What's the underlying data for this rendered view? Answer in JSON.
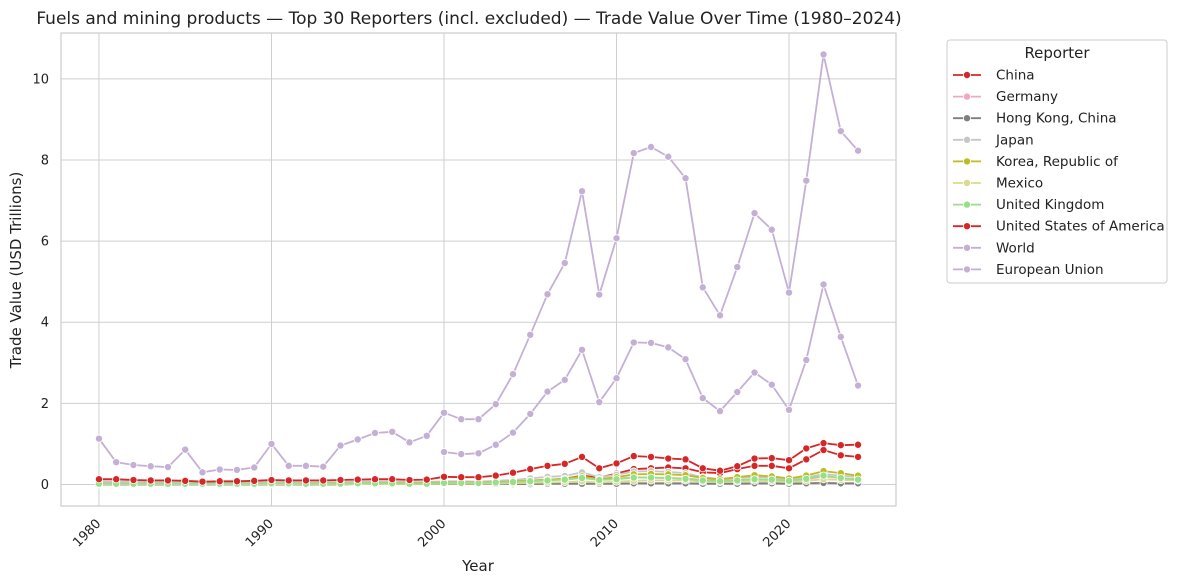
{
  "chart_data": {
    "type": "line",
    "title": "Fuels and mining products — Top 30 Reporters (incl. excluded) — Trade Value Over Time (1980–2024)",
    "xlabel": "Year",
    "ylabel": "Trade Value (USD Trillions)",
    "xlim": [
      1977.8,
      2026.2
    ],
    "ylim": [
      -0.53,
      11.13
    ],
    "xticks": [
      1980,
      1990,
      2000,
      2010,
      2020
    ],
    "yticks": [
      0,
      2,
      4,
      6,
      8,
      10
    ],
    "grid": true,
    "legend": {
      "title": "Reporter",
      "placement": "outside-right"
    },
    "series": [
      {
        "name": "China",
        "color": "#d62728",
        "x": [
          1980,
          1981,
          1982,
          1983,
          1984,
          1985,
          1986,
          1987,
          1988,
          1989,
          1990,
          1991,
          1992,
          1993,
          1994,
          1995,
          1996,
          1997,
          1998,
          1999,
          2000,
          2001,
          2002,
          2003,
          2004,
          2005,
          2006,
          2007,
          2008,
          2009,
          2010,
          2011,
          2012,
          2013,
          2014,
          2015,
          2016,
          2017,
          2018,
          2019,
          2020,
          2021,
          2022,
          2023,
          2024
        ],
        "y": [
          0.01,
          0.01,
          0.01,
          0.01,
          0.01,
          0.01,
          0.01,
          0.01,
          0.01,
          0.01,
          0.01,
          0.01,
          0.01,
          0.01,
          0.02,
          0.02,
          0.02,
          0.02,
          0.02,
          0.03,
          0.03,
          0.03,
          0.03,
          0.05,
          0.07,
          0.09,
          0.11,
          0.14,
          0.22,
          0.17,
          0.27,
          0.38,
          0.4,
          0.42,
          0.4,
          0.3,
          0.28,
          0.38,
          0.46,
          0.46,
          0.4,
          0.62,
          0.85,
          0.72,
          0.68
        ]
      },
      {
        "name": "Germany",
        "color": "#f4a6c0",
        "x": [
          1980,
          1981,
          1982,
          1983,
          1984,
          1985,
          1986,
          1987,
          1988,
          1989,
          1990,
          1991,
          1992,
          1993,
          1994,
          1995,
          1996,
          1997,
          1998,
          1999,
          2000,
          2001,
          2002,
          2003,
          2004,
          2005,
          2006,
          2007,
          2008,
          2009,
          2010,
          2011,
          2012,
          2013,
          2014,
          2015,
          2016,
          2017,
          2018,
          2019,
          2020,
          2021,
          2022,
          2023,
          2024
        ],
        "y": [
          0.05,
          0.05,
          0.05,
          0.04,
          0.04,
          0.04,
          0.03,
          0.03,
          0.03,
          0.04,
          0.05,
          0.05,
          0.04,
          0.04,
          0.04,
          0.05,
          0.05,
          0.05,
          0.04,
          0.04,
          0.06,
          0.06,
          0.06,
          0.07,
          0.08,
          0.1,
          0.12,
          0.13,
          0.17,
          0.12,
          0.14,
          0.18,
          0.17,
          0.16,
          0.15,
          0.11,
          0.09,
          0.11,
          0.13,
          0.12,
          0.09,
          0.13,
          0.2,
          0.16,
          0.13
        ]
      },
      {
        "name": "Hong Kong, China",
        "color": "#7f7f7f",
        "x": [
          1980,
          1981,
          1982,
          1983,
          1984,
          1985,
          1986,
          1987,
          1988,
          1989,
          1990,
          1991,
          1992,
          1993,
          1994,
          1995,
          1996,
          1997,
          1998,
          1999,
          2000,
          2001,
          2002,
          2003,
          2004,
          2005,
          2006,
          2007,
          2008,
          2009,
          2010,
          2011,
          2012,
          2013,
          2014,
          2015,
          2016,
          2017,
          2018,
          2019,
          2020,
          2021,
          2022,
          2023,
          2024
        ],
        "y": [
          0.0,
          0.0,
          0.0,
          0.0,
          0.0,
          0.0,
          0.0,
          0.0,
          0.0,
          0.0,
          0.0,
          0.0,
          0.0,
          0.0,
          0.0,
          0.01,
          0.01,
          0.01,
          0.01,
          0.01,
          0.01,
          0.01,
          0.01,
          0.01,
          0.01,
          0.01,
          0.02,
          0.02,
          0.02,
          0.02,
          0.02,
          0.03,
          0.03,
          0.03,
          0.03,
          0.02,
          0.02,
          0.02,
          0.03,
          0.03,
          0.02,
          0.03,
          0.04,
          0.03,
          0.03
        ]
      },
      {
        "name": "Japan",
        "color": "#c7c7c7",
        "x": [
          1980,
          1981,
          1982,
          1983,
          1984,
          1985,
          1986,
          1987,
          1988,
          1989,
          1990,
          1991,
          1992,
          1993,
          1994,
          1995,
          1996,
          1997,
          1998,
          1999,
          2000,
          2001,
          2002,
          2003,
          2004,
          2005,
          2006,
          2007,
          2008,
          2009,
          2010,
          2011,
          2012,
          2013,
          2014,
          2015,
          2016,
          2017,
          2018,
          2019,
          2020,
          2021,
          2022,
          2023,
          2024
        ],
        "y": [
          0.08,
          0.08,
          0.07,
          0.07,
          0.07,
          0.06,
          0.05,
          0.05,
          0.05,
          0.06,
          0.07,
          0.07,
          0.06,
          0.06,
          0.06,
          0.07,
          0.08,
          0.08,
          0.06,
          0.06,
          0.08,
          0.08,
          0.07,
          0.09,
          0.11,
          0.15,
          0.19,
          0.21,
          0.3,
          0.18,
          0.24,
          0.32,
          0.33,
          0.31,
          0.28,
          0.18,
          0.13,
          0.16,
          0.19,
          0.17,
          0.12,
          0.17,
          0.26,
          0.22,
          0.19
        ]
      },
      {
        "name": "Korea, Republic of",
        "color": "#bcbd22",
        "x": [
          1980,
          1981,
          1982,
          1983,
          1984,
          1985,
          1986,
          1987,
          1988,
          1989,
          1990,
          1991,
          1992,
          1993,
          1994,
          1995,
          1996,
          1997,
          1998,
          1999,
          2000,
          2001,
          2002,
          2003,
          2004,
          2005,
          2006,
          2007,
          2008,
          2009,
          2010,
          2011,
          2012,
          2013,
          2014,
          2015,
          2016,
          2017,
          2018,
          2019,
          2020,
          2021,
          2022,
          2023,
          2024
        ],
        "y": [
          0.01,
          0.01,
          0.01,
          0.01,
          0.01,
          0.01,
          0.01,
          0.01,
          0.01,
          0.02,
          0.02,
          0.02,
          0.02,
          0.03,
          0.03,
          0.03,
          0.04,
          0.04,
          0.03,
          0.04,
          0.05,
          0.05,
          0.05,
          0.06,
          0.08,
          0.09,
          0.12,
          0.14,
          0.2,
          0.13,
          0.18,
          0.25,
          0.26,
          0.25,
          0.23,
          0.16,
          0.13,
          0.18,
          0.23,
          0.2,
          0.15,
          0.22,
          0.33,
          0.28,
          0.22
        ]
      },
      {
        "name": "Mexico",
        "color": "#dbdb8d",
        "x": [
          1980,
          1981,
          1982,
          1983,
          1984,
          1985,
          1986,
          1987,
          1988,
          1989,
          1990,
          1991,
          1992,
          1993,
          1994,
          1995,
          1996,
          1997,
          1998,
          1999,
          2000,
          2001,
          2002,
          2003,
          2004,
          2005,
          2006,
          2007,
          2008,
          2009,
          2010,
          2011,
          2012,
          2013,
          2014,
          2015,
          2016,
          2017,
          2018,
          2019,
          2020,
          2021,
          2022,
          2023,
          2024
        ],
        "y": [
          0.01,
          0.01,
          0.01,
          0.01,
          0.01,
          0.01,
          0.01,
          0.01,
          0.01,
          0.01,
          0.01,
          0.01,
          0.01,
          0.01,
          0.01,
          0.01,
          0.01,
          0.01,
          0.01,
          0.01,
          0.02,
          0.02,
          0.02,
          0.02,
          0.03,
          0.04,
          0.05,
          0.06,
          0.08,
          0.05,
          0.07,
          0.09,
          0.1,
          0.1,
          0.1,
          0.07,
          0.06,
          0.07,
          0.09,
          0.08,
          0.06,
          0.09,
          0.13,
          0.11,
          0.1
        ]
      },
      {
        "name": "United Kingdom",
        "color": "#98df8a",
        "x": [
          1980,
          1981,
          1982,
          1983,
          1984,
          1985,
          1986,
          1987,
          1988,
          1989,
          1990,
          1991,
          1992,
          1993,
          1994,
          1995,
          1996,
          1997,
          1998,
          1999,
          2000,
          2001,
          2002,
          2003,
          2004,
          2005,
          2006,
          2007,
          2008,
          2009,
          2010,
          2011,
          2012,
          2013,
          2014,
          2015,
          2016,
          2017,
          2018,
          2019,
          2020,
          2021,
          2022,
          2023,
          2024
        ],
        "y": [
          0.02,
          0.02,
          0.02,
          0.02,
          0.02,
          0.02,
          0.02,
          0.02,
          0.02,
          0.02,
          0.03,
          0.03,
          0.02,
          0.02,
          0.02,
          0.03,
          0.03,
          0.03,
          0.02,
          0.02,
          0.04,
          0.04,
          0.04,
          0.05,
          0.06,
          0.08,
          0.1,
          0.12,
          0.16,
          0.11,
          0.13,
          0.17,
          0.17,
          0.16,
          0.14,
          0.1,
          0.08,
          0.1,
          0.13,
          0.12,
          0.09,
          0.14,
          0.22,
          0.16,
          0.12
        ]
      },
      {
        "name": "United States of America",
        "color": "#d62728",
        "x": [
          1980,
          1981,
          1982,
          1983,
          1984,
          1985,
          1986,
          1987,
          1988,
          1989,
          1990,
          1991,
          1992,
          1993,
          1994,
          1995,
          1996,
          1997,
          1998,
          1999,
          2000,
          2001,
          2002,
          2003,
          2004,
          2005,
          2006,
          2007,
          2008,
          2009,
          2010,
          2011,
          2012,
          2013,
          2014,
          2015,
          2016,
          2017,
          2018,
          2019,
          2020,
          2021,
          2022,
          2023,
          2024
        ],
        "y": [
          0.13,
          0.13,
          0.11,
          0.1,
          0.1,
          0.09,
          0.07,
          0.08,
          0.08,
          0.09,
          0.11,
          0.1,
          0.1,
          0.1,
          0.11,
          0.12,
          0.13,
          0.13,
          0.11,
          0.12,
          0.19,
          0.18,
          0.18,
          0.22,
          0.29,
          0.38,
          0.46,
          0.51,
          0.68,
          0.4,
          0.52,
          0.7,
          0.68,
          0.64,
          0.62,
          0.4,
          0.34,
          0.45,
          0.64,
          0.65,
          0.6,
          0.89,
          1.02,
          0.97,
          0.98
        ]
      },
      {
        "name": "World",
        "color": "#c5b0d5",
        "x": [
          1980,
          1981,
          1982,
          1983,
          1984,
          1985,
          1986,
          1987,
          1988,
          1989,
          1990,
          1991,
          1992,
          1993,
          1994,
          1995,
          1996,
          1997,
          1998,
          1999,
          2000,
          2001,
          2002,
          2003,
          2004,
          2005,
          2006,
          2007,
          2008,
          2009,
          2010,
          2011,
          2012,
          2013,
          2014,
          2015,
          2016,
          2017,
          2018,
          2019,
          2020,
          2021,
          2022,
          2023,
          2024
        ],
        "y": [
          1.13,
          0.55,
          0.48,
          0.45,
          0.43,
          0.86,
          0.3,
          0.37,
          0.36,
          0.42,
          1.0,
          0.46,
          0.46,
          0.44,
          0.96,
          1.11,
          1.27,
          1.3,
          1.04,
          1.2,
          1.77,
          1.61,
          1.61,
          1.98,
          2.72,
          3.69,
          4.69,
          5.46,
          7.23,
          4.68,
          6.07,
          8.17,
          8.32,
          8.08,
          7.55,
          4.86,
          4.17,
          5.36,
          6.69,
          6.28,
          4.73,
          7.49,
          10.6,
          8.71,
          8.23
        ]
      },
      {
        "name": "European Union",
        "color": "#c5b0d5",
        "x": [
          2000,
          2001,
          2002,
          2003,
          2004,
          2005,
          2006,
          2007,
          2008,
          2009,
          2010,
          2011,
          2012,
          2013,
          2014,
          2015,
          2016,
          2017,
          2018,
          2019,
          2020,
          2021,
          2022,
          2023,
          2024
        ],
        "y": [
          0.8,
          0.75,
          0.77,
          0.98,
          1.28,
          1.74,
          2.29,
          2.58,
          3.32,
          2.03,
          2.62,
          3.5,
          3.49,
          3.38,
          3.09,
          2.13,
          1.81,
          2.28,
          2.76,
          2.46,
          1.84,
          3.07,
          4.93,
          3.64,
          2.44
        ]
      }
    ]
  }
}
